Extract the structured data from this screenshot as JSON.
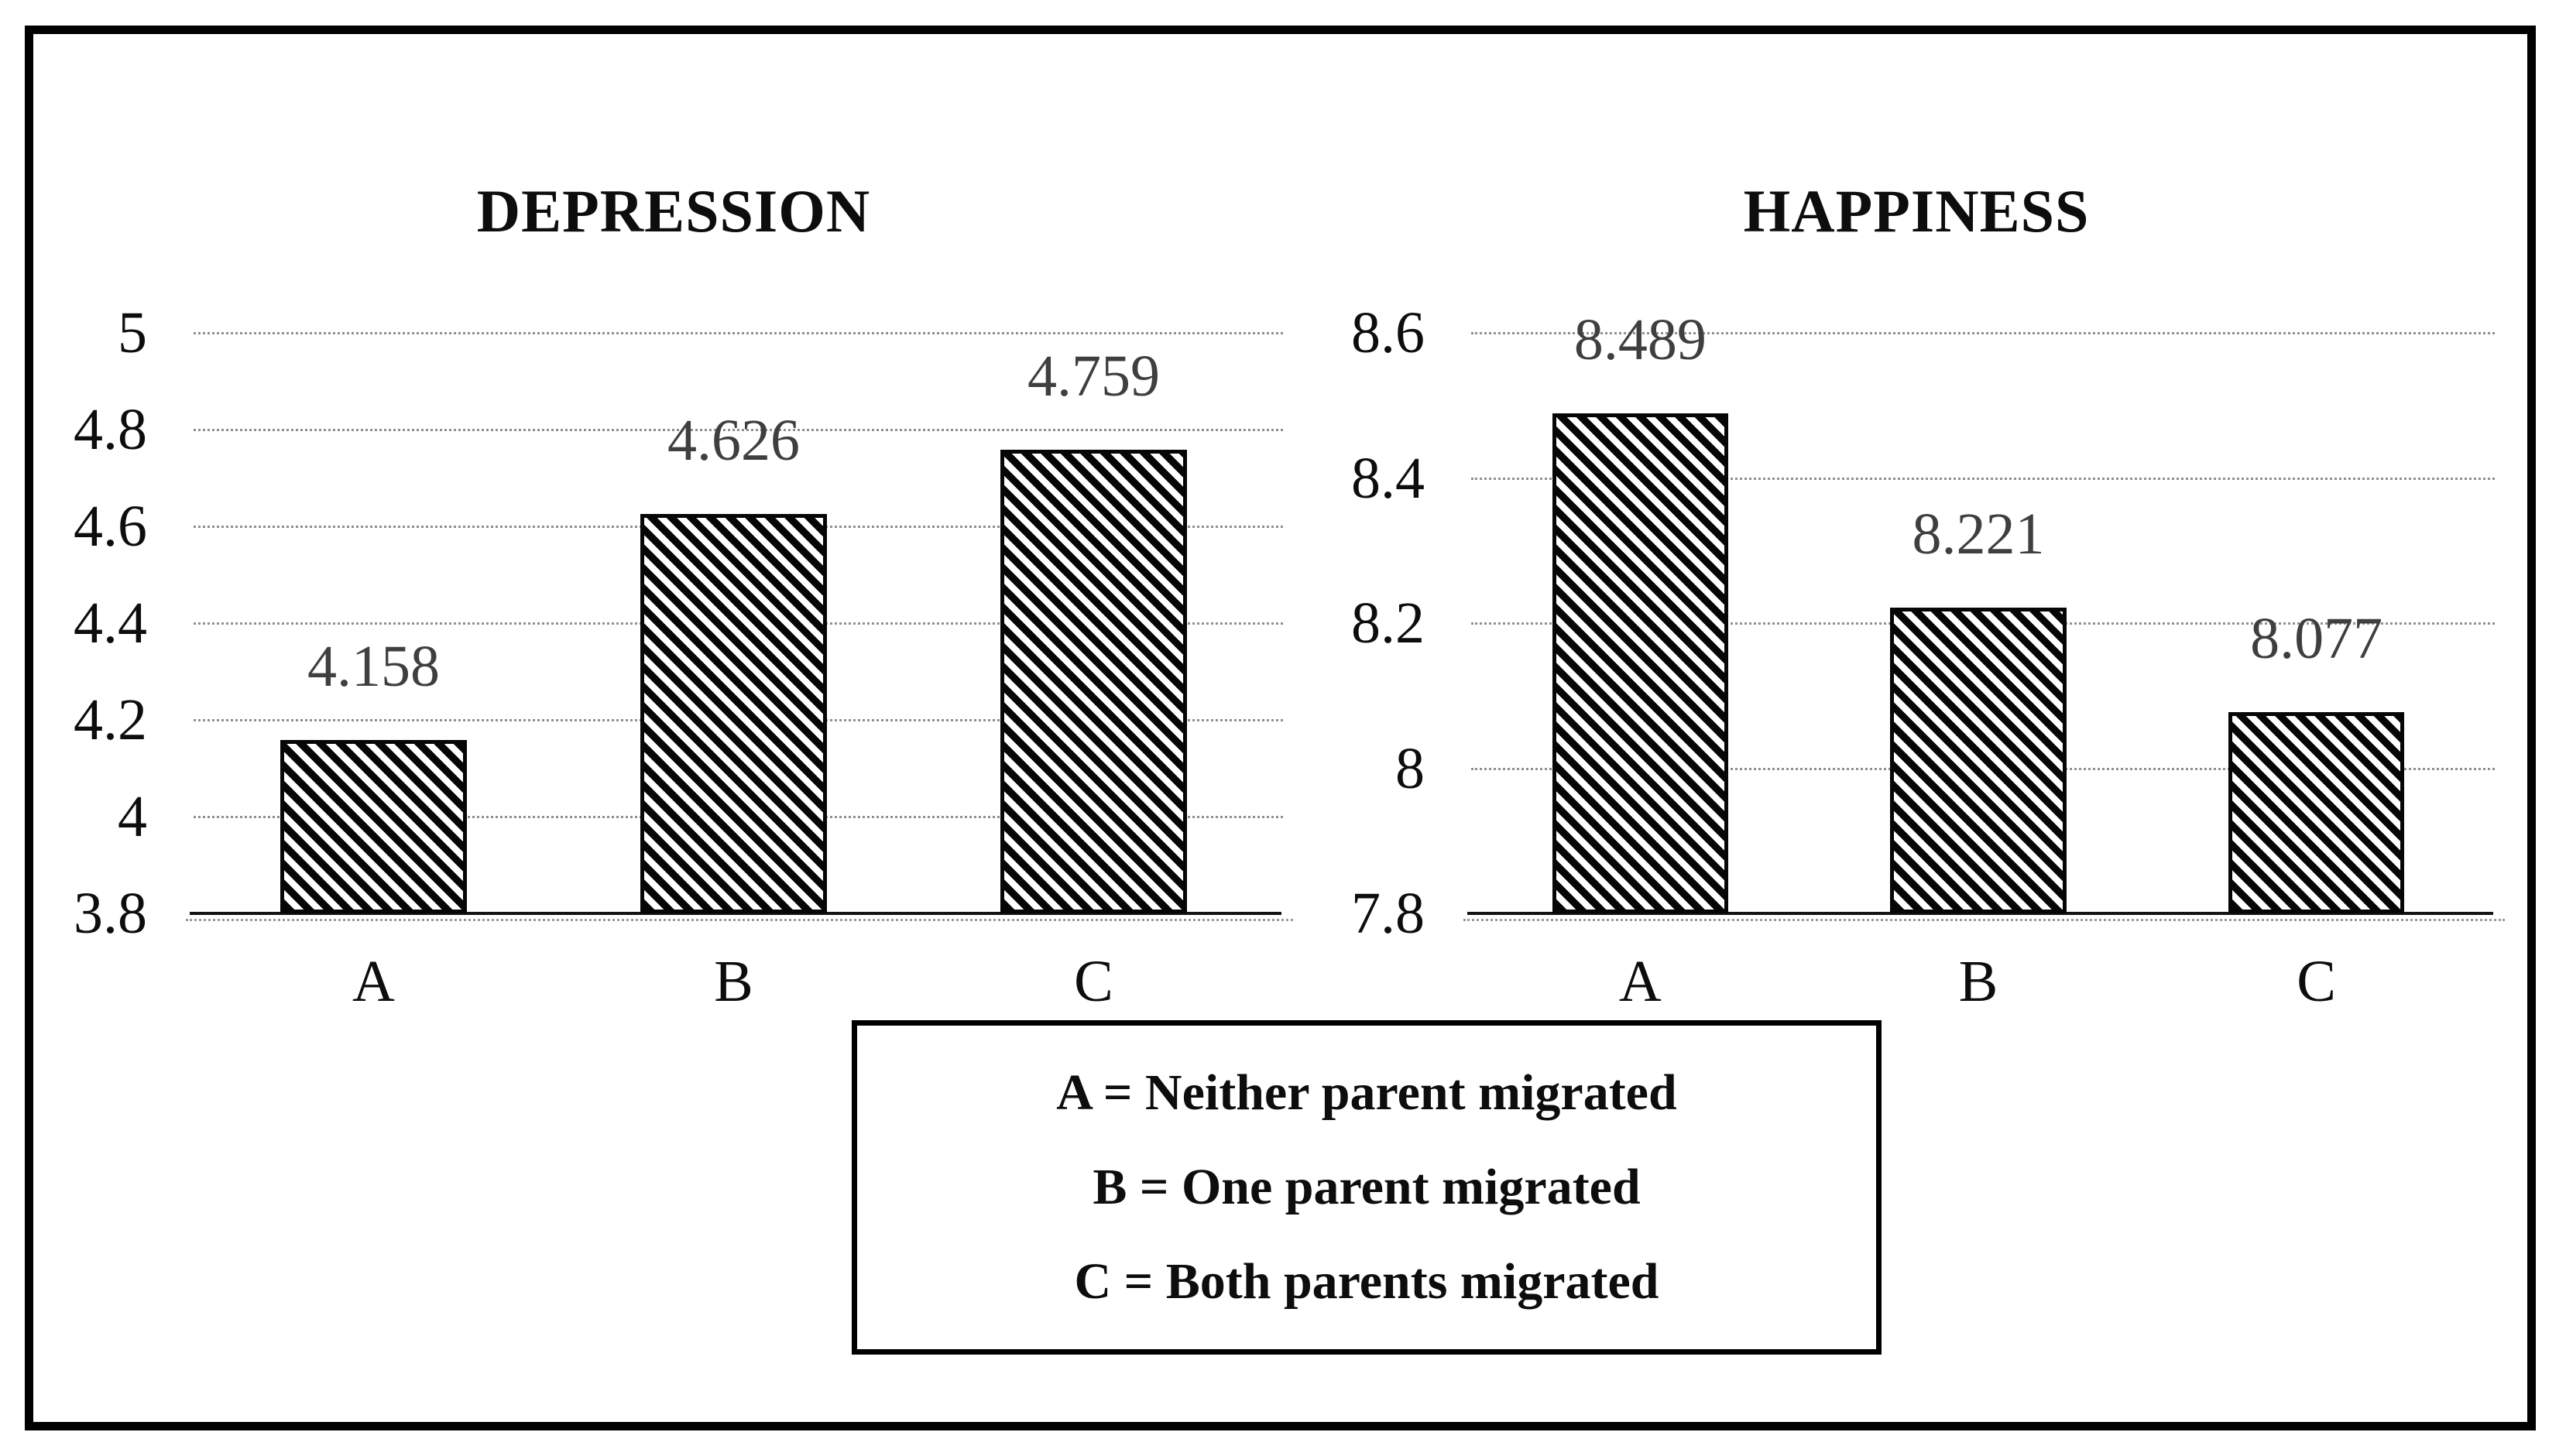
{
  "figure": {
    "description": "Two hatched bar charts comparing depression and happiness scores by parental migration status",
    "background": "#ffffff"
  },
  "chart_data": [
    {
      "type": "bar",
      "title": "DEPRESSION",
      "categories": [
        "A",
        "B",
        "C"
      ],
      "values": [
        4.158,
        4.626,
        4.759
      ],
      "value_labels": [
        "4.158",
        "4.626",
        "4.759"
      ],
      "ylim": [
        3.8,
        5.0
      ],
      "yticks": [
        3.8,
        4.0,
        4.2,
        4.4,
        4.6,
        4.8,
        5.0
      ],
      "ytick_labels": [
        "3.8",
        "4",
        "4.2",
        "4.4",
        "4.6",
        "4.8",
        "5"
      ],
      "xlabel": "",
      "ylabel": "",
      "grid": "horizontal dotted",
      "bar_style": "white fill with black diagonal hatch",
      "legend_position": "shared box below charts"
    },
    {
      "type": "bar",
      "title": "HAPPINESS",
      "categories": [
        "A",
        "B",
        "C"
      ],
      "values": [
        8.489,
        8.221,
        8.077
      ],
      "value_labels": [
        "8.489",
        "8.221",
        "8.077"
      ],
      "ylim": [
        7.8,
        8.6
      ],
      "yticks": [
        7.8,
        8.0,
        8.2,
        8.4,
        8.6
      ],
      "ytick_labels": [
        "7.8",
        "8",
        "8.2",
        "8.4",
        "8.6"
      ],
      "xlabel": "",
      "ylabel": "",
      "grid": "horizontal dotted",
      "bar_style": "white fill with black diagonal hatch",
      "legend_position": "shared box below charts"
    }
  ],
  "legend": {
    "items": [
      "A = Neither parent migrated",
      "B = One parent migrated",
      "C = Both parents migrated"
    ]
  },
  "colors": {
    "background": "#ffffff",
    "text": "#0d0d0d",
    "hatch_ink": "#060606",
    "gridline": "#8f8f8f",
    "data_label": "#3f3f3f",
    "frame_border": "#000000"
  }
}
